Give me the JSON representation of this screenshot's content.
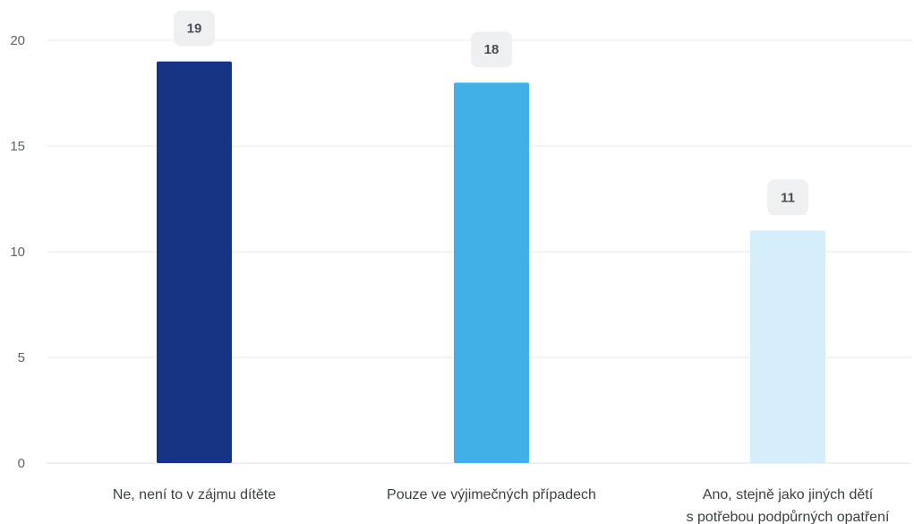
{
  "chart_data": {
    "type": "bar",
    "categories": [
      [
        "Ne, není to v zájmu dítěte"
      ],
      [
        "Pouze ve výjimečných případech"
      ],
      [
        "Ano, stejně jako jiných dětí",
        "s potřebou podpůrných opatření"
      ]
    ],
    "values": [
      19,
      18,
      11
    ],
    "colors": [
      "#173383",
      "#41b0e6",
      "#d4effb"
    ],
    "ylim": [
      0,
      20
    ],
    "yticks": [
      0,
      5,
      10,
      15,
      20
    ],
    "grid": true,
    "legend": "none",
    "title": "",
    "xlabel": "",
    "ylabel": ""
  }
}
